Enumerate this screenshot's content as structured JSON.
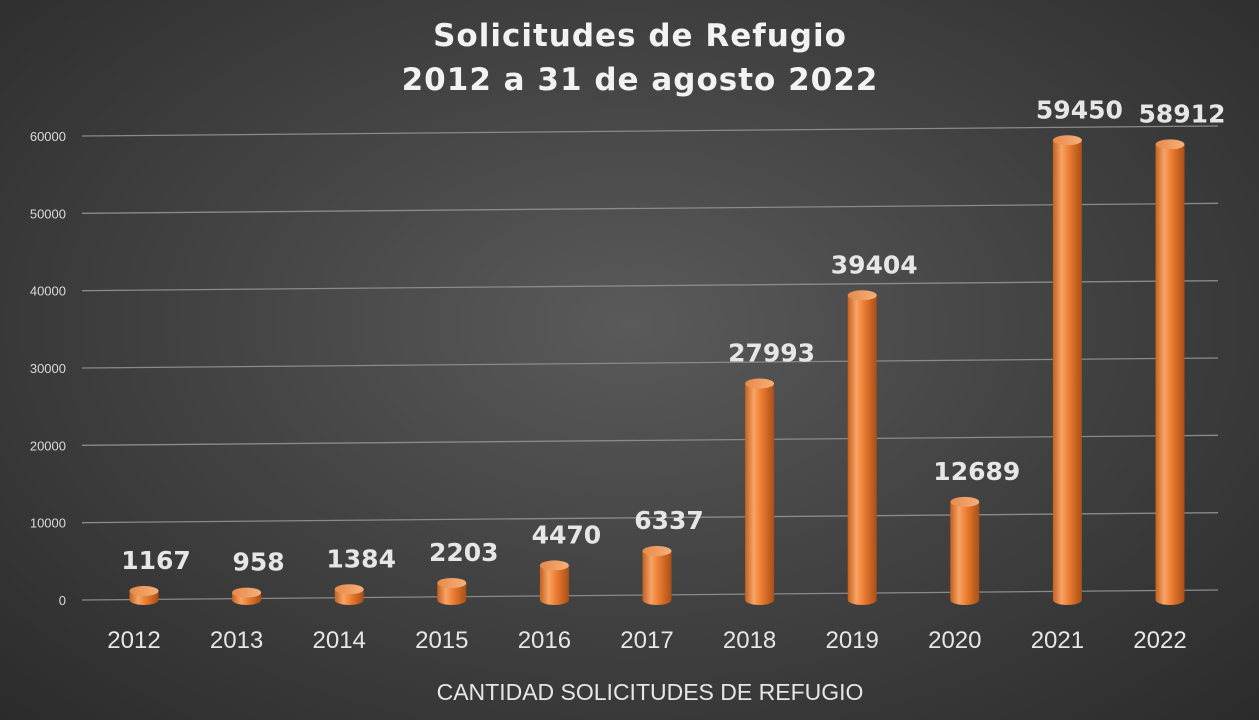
{
  "chart_data": {
    "type": "bar",
    "title": "Solicitudes de Refugio",
    "subtitle": "2012 a 31 de agosto 2022",
    "xlabel": "CANTIDAD SOLICITUDES DE REFUGIO",
    "ylabel": "",
    "categories": [
      "2012",
      "2013",
      "2014",
      "2015",
      "2016",
      "2017",
      "2018",
      "2019",
      "2020",
      "2021",
      "2022"
    ],
    "values": [
      1167,
      958,
      1384,
      2203,
      4470,
      6337,
      27993,
      39404,
      12689,
      59450,
      58912
    ],
    "data_labels": [
      "1167",
      "958",
      "1384",
      "2203",
      "4470",
      "6337",
      "27993",
      "39404",
      "12689",
      "59450",
      "58912"
    ],
    "ylim": [
      0,
      60000
    ],
    "yticks": [
      0,
      10000,
      20000,
      30000,
      40000,
      50000,
      60000
    ],
    "ytick_labels": [
      "0",
      "10000",
      "20000",
      "30000",
      "40000",
      "50000",
      "60000"
    ],
    "grid": true,
    "legend": "none",
    "bar_style": "cylinder",
    "colors": {
      "bar": "#ed7d31",
      "bar_light": "#f9b98a",
      "bar_dark": "#b2561c",
      "background": "#404040",
      "grid": "#8a8a8a",
      "text": "#e6e6e6"
    }
  }
}
